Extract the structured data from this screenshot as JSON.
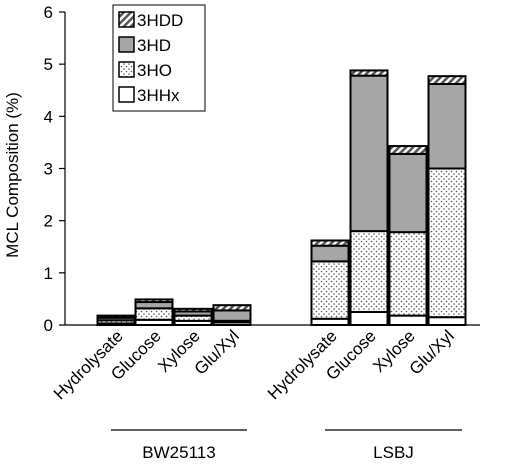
{
  "chart_data": {
    "type": "bar",
    "stacked": true,
    "ylabel": "MCL Composition (%)",
    "ylim": [
      0,
      6
    ],
    "yticks": [
      "0",
      "1",
      "2",
      "3",
      "4",
      "5",
      "6"
    ],
    "categories": [
      "Hydrolysate",
      "Glucose",
      "Xylose",
      "Glu/Xyl",
      "Hydrolysate",
      "Glucose",
      "Xylose",
      "Glu/Xyl"
    ],
    "groups": [
      {
        "label": "BW25113",
        "indices": [
          0,
          1,
          2,
          3
        ]
      },
      {
        "label": "LSBJ",
        "indices": [
          4,
          5,
          6,
          7
        ]
      }
    ],
    "series": [
      {
        "name": "3HHx",
        "pattern": "white",
        "values": [
          0.03,
          0.1,
          0.08,
          0.05,
          0.12,
          0.25,
          0.18,
          0.15
        ]
      },
      {
        "name": "3HO",
        "pattern": "dots",
        "values": [
          0.06,
          0.22,
          0.1,
          0.03,
          1.1,
          1.55,
          1.6,
          2.85
        ]
      },
      {
        "name": "3HD",
        "pattern": "gray",
        "values": [
          0.05,
          0.12,
          0.08,
          0.2,
          0.3,
          2.98,
          1.5,
          1.62
        ]
      },
      {
        "name": "3HDD",
        "pattern": "hatch",
        "values": [
          0.04,
          0.05,
          0.05,
          0.1,
          0.1,
          0.1,
          0.15,
          0.15
        ]
      }
    ],
    "legend_position": "top-left",
    "grid": false
  }
}
